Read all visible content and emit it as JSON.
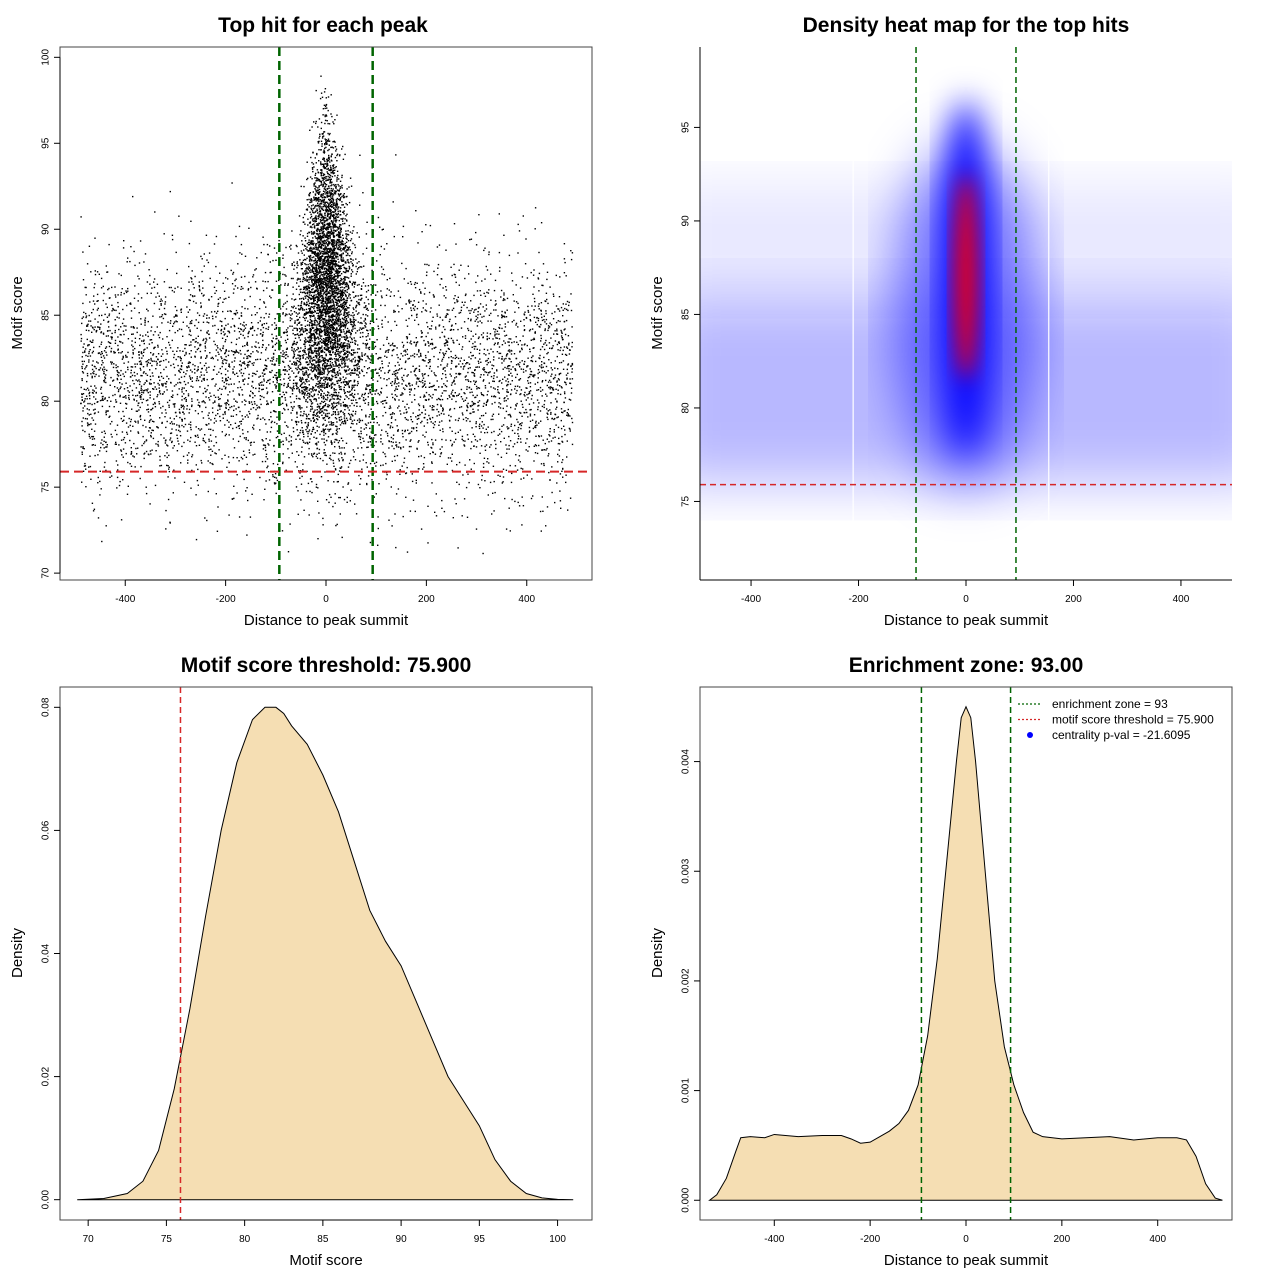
{
  "chart_data": [
    {
      "id": "scatter",
      "type": "scatter",
      "title": "Top hit for each peak",
      "xlabel": "Distance to peak summit",
      "ylabel": "Motif score",
      "xlim": [
        -530,
        530
      ],
      "ylim": [
        69.6,
        100.6
      ],
      "xticks": [
        "-400",
        "-200",
        "0",
        "200",
        "400"
      ],
      "xtick_values": [
        -400,
        -200,
        0,
        200,
        400
      ],
      "yticks": [
        "70",
        "75",
        "80",
        "85",
        "90",
        "95",
        "100"
      ],
      "ytick_values": [
        70,
        75,
        80,
        85,
        90,
        95,
        100
      ],
      "point_color": "#000000",
      "background_range_x": [
        -490,
        490
      ],
      "background_score_mean": 81.5,
      "central_score_mean": 86.5,
      "reference_lines": [
        {
          "orientation": "vertical",
          "value": -93,
          "color": "#006400",
          "style": "dashed"
        },
        {
          "orientation": "vertical",
          "value": 93,
          "color": "#006400",
          "style": "dashed"
        },
        {
          "orientation": "horizontal",
          "value": 75.9,
          "color": "#d62728",
          "style": "dashed"
        }
      ]
    },
    {
      "id": "heatmap",
      "type": "heatmap",
      "title": "Density heat map for the top hits",
      "xlabel": "Distance to peak summit",
      "ylabel": "Motif score",
      "xlim": [
        -495,
        495
      ],
      "ylim": [
        70.8,
        99.3
      ],
      "xticks": [
        "-400",
        "-200",
        "0",
        "200",
        "400"
      ],
      "xtick_values": [
        -400,
        -200,
        0,
        200,
        400
      ],
      "yticks": [
        "75",
        "80",
        "85",
        "90",
        "95"
      ],
      "ytick_values": [
        75,
        80,
        85,
        90,
        95
      ],
      "color_scale": [
        "#ffffff",
        "#0000ff",
        "#ff0000"
      ],
      "hotspot_center": [
        0,
        87
      ],
      "reference_lines": [
        {
          "orientation": "vertical",
          "value": -93,
          "color": "#006400",
          "style": "dashed"
        },
        {
          "orientation": "vertical",
          "value": 93,
          "color": "#006400",
          "style": "dashed"
        },
        {
          "orientation": "horizontal",
          "value": 75.9,
          "color": "#d62728",
          "style": "dashed"
        }
      ]
    },
    {
      "id": "score_density",
      "type": "area",
      "title": "Motif score threshold: 75.900",
      "xlabel": "Motif score",
      "ylabel": "Density",
      "xlim": [
        68.2,
        102.2
      ],
      "ylim": [
        -0.0033,
        0.0833
      ],
      "xticks": [
        "70",
        "75",
        "80",
        "85",
        "90",
        "95",
        "100"
      ],
      "xtick_values": [
        70,
        75,
        80,
        85,
        90,
        95,
        100
      ],
      "yticks": [
        "0.00",
        "0.02",
        "0.04",
        "0.06",
        "0.08"
      ],
      "ytick_values": [
        0,
        0.02,
        0.04,
        0.06,
        0.08
      ],
      "fill_color": "#f5deb3",
      "x": [
        69.3,
        71,
        72.5,
        73.5,
        74.5,
        75.5,
        76.5,
        77.5,
        78.5,
        79.5,
        80.5,
        81.3,
        82,
        82.5,
        83,
        84,
        85,
        86,
        87,
        88,
        89,
        90,
        91,
        92,
        93,
        94,
        95,
        96,
        97,
        98,
        99,
        100,
        101
      ],
      "y": [
        0,
        0.0002,
        0.001,
        0.003,
        0.008,
        0.018,
        0.031,
        0.046,
        0.06,
        0.071,
        0.078,
        0.08,
        0.08,
        0.079,
        0.077,
        0.074,
        0.069,
        0.063,
        0.055,
        0.047,
        0.042,
        0.038,
        0.032,
        0.026,
        0.02,
        0.016,
        0.012,
        0.0065,
        0.003,
        0.001,
        0.0003,
        5e-05,
        0
      ],
      "reference_lines": [
        {
          "orientation": "vertical",
          "value": 75.9,
          "color": "#d62728",
          "style": "dashed"
        }
      ]
    },
    {
      "id": "distance_density",
      "type": "area",
      "title": "Enrichment zone: 93.00",
      "xlabel": "Distance to peak summit",
      "ylabel": "Density",
      "xlim": [
        -555,
        555
      ],
      "ylim": [
        -0.00018,
        0.00468
      ],
      "xticks": [
        "-400",
        "-200",
        "0",
        "200",
        "400"
      ],
      "xtick_values": [
        -400,
        -200,
        0,
        200,
        400
      ],
      "yticks": [
        "0.000",
        "0.001",
        "0.002",
        "0.003",
        "0.004"
      ],
      "ytick_values": [
        0,
        0.001,
        0.002,
        0.003,
        0.004
      ],
      "fill_color": "#f5deb3",
      "x": [
        -535,
        -520,
        -500,
        -480,
        -470,
        -450,
        -420,
        -400,
        -350,
        -300,
        -260,
        -240,
        -220,
        -200,
        -180,
        -160,
        -140,
        -120,
        -100,
        -80,
        -60,
        -40,
        -20,
        -10,
        0,
        10,
        20,
        40,
        60,
        80,
        100,
        120,
        140,
        160,
        200,
        250,
        300,
        350,
        400,
        440,
        460,
        480,
        500,
        520,
        535
      ],
      "y": [
        0,
        5e-05,
        0.0002,
        0.00045,
        0.00057,
        0.00058,
        0.00057,
        0.0006,
        0.00058,
        0.00059,
        0.00059,
        0.00056,
        0.00052,
        0.00053,
        0.00058,
        0.00063,
        0.0007,
        0.00082,
        0.00105,
        0.0015,
        0.0022,
        0.0031,
        0.004,
        0.0044,
        0.0045,
        0.0044,
        0.004,
        0.003,
        0.002,
        0.0014,
        0.00105,
        0.0008,
        0.00062,
        0.00058,
        0.00056,
        0.00057,
        0.00058,
        0.00055,
        0.00057,
        0.00057,
        0.00055,
        0.0004,
        0.00015,
        2e-05,
        0
      ],
      "reference_lines": [
        {
          "orientation": "vertical",
          "value": -93,
          "color": "#006400",
          "style": "dashed"
        },
        {
          "orientation": "vertical",
          "value": 93,
          "color": "#006400",
          "style": "dashed"
        }
      ],
      "legend": [
        {
          "label": "enrichment zone = 93",
          "color": "#006400",
          "kind": "line"
        },
        {
          "label": "motif score threshold = 75.900",
          "color": "#d62728",
          "kind": "line"
        },
        {
          "label": "centrality p-val = -21.6095",
          "color": "#0000ff",
          "kind": "point"
        }
      ]
    }
  ]
}
